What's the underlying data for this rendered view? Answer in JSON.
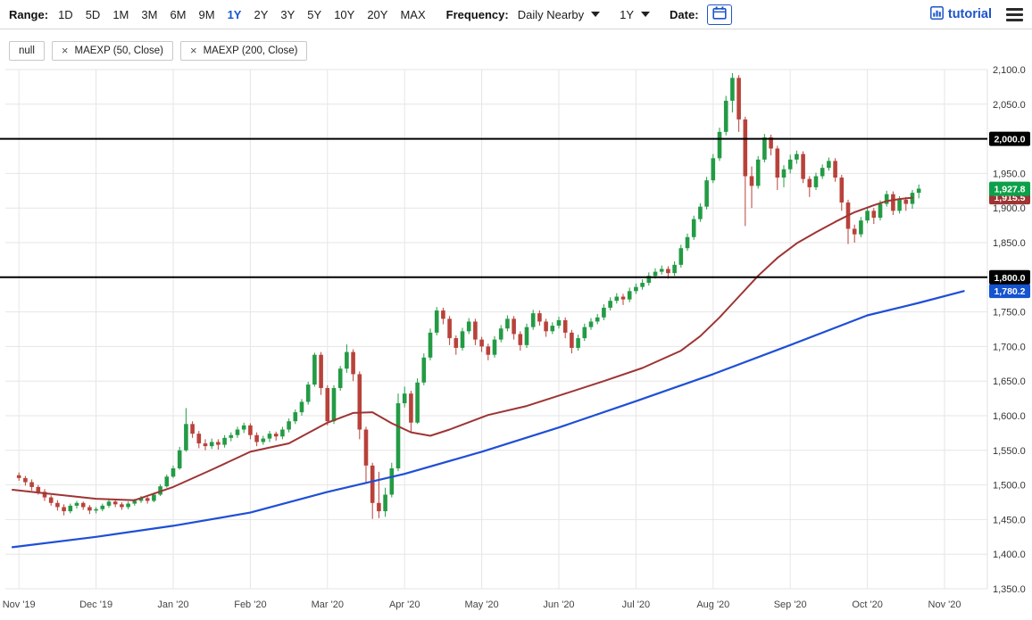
{
  "toolbar": {
    "range_label": "Range:",
    "ranges": [
      "1D",
      "5D",
      "1M",
      "3M",
      "6M",
      "9M",
      "1Y",
      "2Y",
      "3Y",
      "5Y",
      "10Y",
      "20Y",
      "MAX"
    ],
    "selected_range": "1Y",
    "frequency_label": "Frequency:",
    "frequency_value": "Daily Nearby",
    "period_value": "1Y",
    "date_label": "Date:",
    "brand": "tutorial"
  },
  "chips": [
    {
      "label": "null",
      "closable": false
    },
    {
      "label": "MAEXP (50, Close)",
      "closable": true
    },
    {
      "label": "MAEXP (200, Close)",
      "closable": true
    }
  ],
  "chart_data": {
    "type": "candlestick",
    "grid": true,
    "ylim": [
      1350,
      2100
    ],
    "colors": {
      "up": "#239b45",
      "down": "#b8423a",
      "grid": "#e6e6e6",
      "hline": "#000000"
    },
    "x_labels": [
      "Nov '19",
      "Dec '19",
      "Jan '20",
      "Feb '20",
      "Mar '20",
      "Apr '20",
      "May '20",
      "Jun '20",
      "Jul '20",
      "Aug '20",
      "Sep '20",
      "Oct '20",
      "Nov '20"
    ],
    "y_ticks": [
      {
        "v": 2100,
        "label": "2,100.0"
      },
      {
        "v": 2050,
        "label": "2,050.0"
      },
      {
        "v": 2000,
        "label": "2,000.0"
      },
      {
        "v": 1950,
        "label": "1,950.0"
      },
      {
        "v": 1900,
        "label": "1,900.0"
      },
      {
        "v": 1850,
        "label": "1,850.0"
      },
      {
        "v": 1800,
        "label": "1,800.0"
      },
      {
        "v": 1750,
        "label": "1,750.0"
      },
      {
        "v": 1700,
        "label": "1,700.0"
      },
      {
        "v": 1650,
        "label": "1,650.0"
      },
      {
        "v": 1600,
        "label": "1,600.0"
      },
      {
        "v": 1550,
        "label": "1,550.0"
      },
      {
        "v": 1500,
        "label": "1,500.0"
      },
      {
        "v": 1450,
        "label": "1,450.0"
      },
      {
        "v": 1400,
        "label": "1,400.0"
      },
      {
        "v": 1350,
        "label": "1,350.0"
      }
    ],
    "hlines": [
      {
        "value": 2000,
        "label": "2,000.0"
      },
      {
        "value": 1800,
        "label": "1,800.0"
      }
    ],
    "badges": [
      {
        "name": "ma50-last-badge",
        "value": 1915.5,
        "label": "1,915.5",
        "color": "#9e3434"
      },
      {
        "name": "last-price-badge",
        "value": 1927.8,
        "label": "1,927.8",
        "color": "#0da04a"
      },
      {
        "name": "ma200-last-badge",
        "value": 1780.2,
        "label": "1,780.2",
        "color": "#1553cf"
      },
      {
        "name": "hline-2000-badge",
        "value": 2000,
        "label": "2,000.0",
        "color": "#000000"
      },
      {
        "name": "hline-1800-badge",
        "value": 1800,
        "label": "1,800.0",
        "color": "#000000"
      }
    ],
    "series": [
      {
        "name": "ma50",
        "label": "MAEXP (50, Close)",
        "color": "#9e3434",
        "width": 2,
        "points": [
          [
            0,
            1493
          ],
          [
            7,
            1486
          ],
          [
            13,
            1480
          ],
          [
            19,
            1478
          ],
          [
            25,
            1497
          ],
          [
            31,
            1522
          ],
          [
            37,
            1548
          ],
          [
            43,
            1560
          ],
          [
            49,
            1590
          ],
          [
            53,
            1604
          ],
          [
            56,
            1605
          ],
          [
            59,
            1589
          ],
          [
            62,
            1576
          ],
          [
            65,
            1571
          ],
          [
            68,
            1580
          ],
          [
            74,
            1601
          ],
          [
            80,
            1614
          ],
          [
            86,
            1632
          ],
          [
            92,
            1650
          ],
          [
            98,
            1669
          ],
          [
            104,
            1694
          ],
          [
            107,
            1715
          ],
          [
            110,
            1742
          ],
          [
            113,
            1772
          ],
          [
            116,
            1802
          ],
          [
            119,
            1828
          ],
          [
            122,
            1849
          ],
          [
            125,
            1865
          ],
          [
            128,
            1880
          ],
          [
            131,
            1894
          ],
          [
            134,
            1904
          ],
          [
            136,
            1910
          ],
          [
            138,
            1913
          ],
          [
            140,
            1915
          ]
        ]
      },
      {
        "name": "ma200",
        "label": "MAEXP (200, Close)",
        "color": "#1e4fd6",
        "width": 2.2,
        "points": [
          [
            0,
            1410
          ],
          [
            13,
            1425
          ],
          [
            25,
            1441
          ],
          [
            37,
            1460
          ],
          [
            49,
            1490
          ],
          [
            61,
            1516
          ],
          [
            73,
            1548
          ],
          [
            85,
            1583
          ],
          [
            97,
            1621
          ],
          [
            109,
            1660
          ],
          [
            121,
            1702
          ],
          [
            133,
            1745
          ],
          [
            141,
            1763
          ],
          [
            148,
            1780
          ]
        ]
      }
    ],
    "candles": [
      [
        1514,
        1518,
        1506,
        1510
      ],
      [
        1510,
        1513,
        1499,
        1504
      ],
      [
        1504,
        1508,
        1492,
        1497
      ],
      [
        1497,
        1500,
        1486,
        1490
      ],
      [
        1490,
        1494,
        1477,
        1482
      ],
      [
        1482,
        1485,
        1470,
        1474
      ],
      [
        1474,
        1478,
        1463,
        1468
      ],
      [
        1468,
        1472,
        1456,
        1462
      ],
      [
        1462,
        1473,
        1459,
        1470
      ],
      [
        1470,
        1477,
        1466,
        1474
      ],
      [
        1474,
        1476,
        1464,
        1468
      ],
      [
        1468,
        1471,
        1458,
        1463
      ],
      [
        1463,
        1468,
        1459,
        1465
      ],
      [
        1465,
        1473,
        1462,
        1470
      ],
      [
        1470,
        1479,
        1467,
        1476
      ],
      [
        1476,
        1478,
        1468,
        1472
      ],
      [
        1472,
        1475,
        1464,
        1468
      ],
      [
        1468,
        1476,
        1465,
        1473
      ],
      [
        1473,
        1480,
        1470,
        1477
      ],
      [
        1477,
        1484,
        1474,
        1481
      ],
      [
        1481,
        1483,
        1473,
        1477
      ],
      [
        1477,
        1489,
        1475,
        1486
      ],
      [
        1486,
        1501,
        1484,
        1498
      ],
      [
        1498,
        1515,
        1496,
        1512
      ],
      [
        1512,
        1528,
        1510,
        1524
      ],
      [
        1524,
        1555,
        1522,
        1550
      ],
      [
        1550,
        1611,
        1548,
        1588
      ],
      [
        1588,
        1592,
        1568,
        1574
      ],
      [
        1574,
        1578,
        1553,
        1560
      ],
      [
        1560,
        1566,
        1550,
        1556
      ],
      [
        1556,
        1567,
        1552,
        1562
      ],
      [
        1562,
        1566,
        1551,
        1558
      ],
      [
        1558,
        1572,
        1554,
        1568
      ],
      [
        1568,
        1576,
        1563,
        1572
      ],
      [
        1572,
        1584,
        1568,
        1580
      ],
      [
        1580,
        1590,
        1575,
        1586
      ],
      [
        1586,
        1589,
        1566,
        1572
      ],
      [
        1572,
        1576,
        1556,
        1562
      ],
      [
        1562,
        1571,
        1558,
        1567
      ],
      [
        1567,
        1578,
        1562,
        1574
      ],
      [
        1574,
        1577,
        1564,
        1570
      ],
      [
        1570,
        1584,
        1566,
        1580
      ],
      [
        1580,
        1596,
        1576,
        1592
      ],
      [
        1592,
        1609,
        1588,
        1605
      ],
      [
        1605,
        1624,
        1600,
        1620
      ],
      [
        1620,
        1649,
        1616,
        1645
      ],
      [
        1645,
        1691,
        1642,
        1688
      ],
      [
        1688,
        1692,
        1630,
        1640
      ],
      [
        1640,
        1644,
        1586,
        1592
      ],
      [
        1592,
        1644,
        1588,
        1640
      ],
      [
        1640,
        1672,
        1636,
        1668
      ],
      [
        1668,
        1703,
        1662,
        1692
      ],
      [
        1692,
        1696,
        1650,
        1660
      ],
      [
        1660,
        1664,
        1566,
        1580
      ],
      [
        1580,
        1584,
        1504,
        1528
      ],
      [
        1528,
        1532,
        1451,
        1474
      ],
      [
        1474,
        1519,
        1452,
        1462
      ],
      [
        1462,
        1496,
        1454,
        1486
      ],
      [
        1486,
        1532,
        1482,
        1524
      ],
      [
        1524,
        1632,
        1520,
        1618
      ],
      [
        1618,
        1642,
        1612,
        1632
      ],
      [
        1632,
        1636,
        1576,
        1590
      ],
      [
        1590,
        1654,
        1588,
        1648
      ],
      [
        1648,
        1690,
        1644,
        1684
      ],
      [
        1684,
        1726,
        1680,
        1720
      ],
      [
        1720,
        1757,
        1716,
        1752
      ],
      [
        1752,
        1756,
        1732,
        1740
      ],
      [
        1740,
        1744,
        1702,
        1712
      ],
      [
        1712,
        1716,
        1688,
        1698
      ],
      [
        1698,
        1727,
        1694,
        1722
      ],
      [
        1722,
        1741,
        1718,
        1736
      ],
      [
        1736,
        1740,
        1702,
        1710
      ],
      [
        1710,
        1714,
        1692,
        1700
      ],
      [
        1700,
        1704,
        1680,
        1688
      ],
      [
        1688,
        1715,
        1684,
        1710
      ],
      [
        1710,
        1731,
        1706,
        1726
      ],
      [
        1726,
        1745,
        1722,
        1740
      ],
      [
        1740,
        1744,
        1710,
        1718
      ],
      [
        1718,
        1722,
        1694,
        1702
      ],
      [
        1702,
        1733,
        1698,
        1728
      ],
      [
        1728,
        1753,
        1724,
        1748
      ],
      [
        1748,
        1752,
        1730,
        1736
      ],
      [
        1736,
        1740,
        1714,
        1722
      ],
      [
        1722,
        1735,
        1718,
        1730
      ],
      [
        1730,
        1743,
        1726,
        1738
      ],
      [
        1738,
        1742,
        1712,
        1720
      ],
      [
        1720,
        1724,
        1690,
        1698
      ],
      [
        1698,
        1717,
        1694,
        1712
      ],
      [
        1712,
        1733,
        1708,
        1728
      ],
      [
        1728,
        1741,
        1724,
        1736
      ],
      [
        1736,
        1747,
        1732,
        1742
      ],
      [
        1742,
        1761,
        1738,
        1756
      ],
      [
        1756,
        1771,
        1752,
        1766
      ],
      [
        1766,
        1777,
        1762,
        1772
      ],
      [
        1772,
        1776,
        1760,
        1768
      ],
      [
        1768,
        1785,
        1764,
        1780
      ],
      [
        1780,
        1791,
        1776,
        1786
      ],
      [
        1786,
        1797,
        1782,
        1792
      ],
      [
        1792,
        1807,
        1788,
        1802
      ],
      [
        1802,
        1813,
        1798,
        1808
      ],
      [
        1808,
        1817,
        1804,
        1812
      ],
      [
        1812,
        1816,
        1798,
        1806
      ],
      [
        1806,
        1823,
        1802,
        1818
      ],
      [
        1818,
        1847,
        1814,
        1842
      ],
      [
        1842,
        1863,
        1838,
        1858
      ],
      [
        1858,
        1889,
        1854,
        1884
      ],
      [
        1884,
        1907,
        1880,
        1902
      ],
      [
        1902,
        1945,
        1898,
        1940
      ],
      [
        1940,
        1978,
        1936,
        1972
      ],
      [
        1972,
        2016,
        1968,
        2010
      ],
      [
        2010,
        2062,
        2005,
        2055
      ],
      [
        2055,
        2095,
        2038,
        2088
      ],
      [
        2088,
        2092,
        2010,
        2028
      ],
      [
        2028,
        2032,
        1874,
        1946
      ],
      [
        1946,
        1960,
        1900,
        1932
      ],
      [
        1932,
        1975,
        1928,
        1970
      ],
      [
        1970,
        2007,
        1966,
        2002
      ],
      [
        2002,
        2006,
        1976,
        1986
      ],
      [
        1986,
        1990,
        1926,
        1944
      ],
      [
        1944,
        1962,
        1930,
        1956
      ],
      [
        1956,
        1977,
        1950,
        1970
      ],
      [
        1970,
        1983,
        1964,
        1978
      ],
      [
        1978,
        1982,
        1936,
        1942
      ],
      [
        1942,
        1946,
        1916,
        1930
      ],
      [
        1930,
        1951,
        1926,
        1946
      ],
      [
        1946,
        1963,
        1942,
        1958
      ],
      [
        1958,
        1973,
        1954,
        1968
      ],
      [
        1968,
        1972,
        1938,
        1944
      ],
      [
        1944,
        1948,
        1896,
        1908
      ],
      [
        1908,
        1912,
        1848,
        1870
      ],
      [
        1870,
        1876,
        1850,
        1862
      ],
      [
        1862,
        1887,
        1858,
        1882
      ],
      [
        1882,
        1901,
        1878,
        1896
      ],
      [
        1896,
        1900,
        1877,
        1886
      ],
      [
        1886,
        1911,
        1882,
        1906
      ],
      [
        1906,
        1925,
        1902,
        1920
      ],
      [
        1920,
        1924,
        1890,
        1896
      ],
      [
        1896,
        1917,
        1892,
        1912
      ],
      [
        1912,
        1916,
        1896,
        1906
      ],
      [
        1906,
        1926,
        1899,
        1922
      ],
      [
        1922,
        1934,
        1914,
        1928
      ]
    ]
  }
}
